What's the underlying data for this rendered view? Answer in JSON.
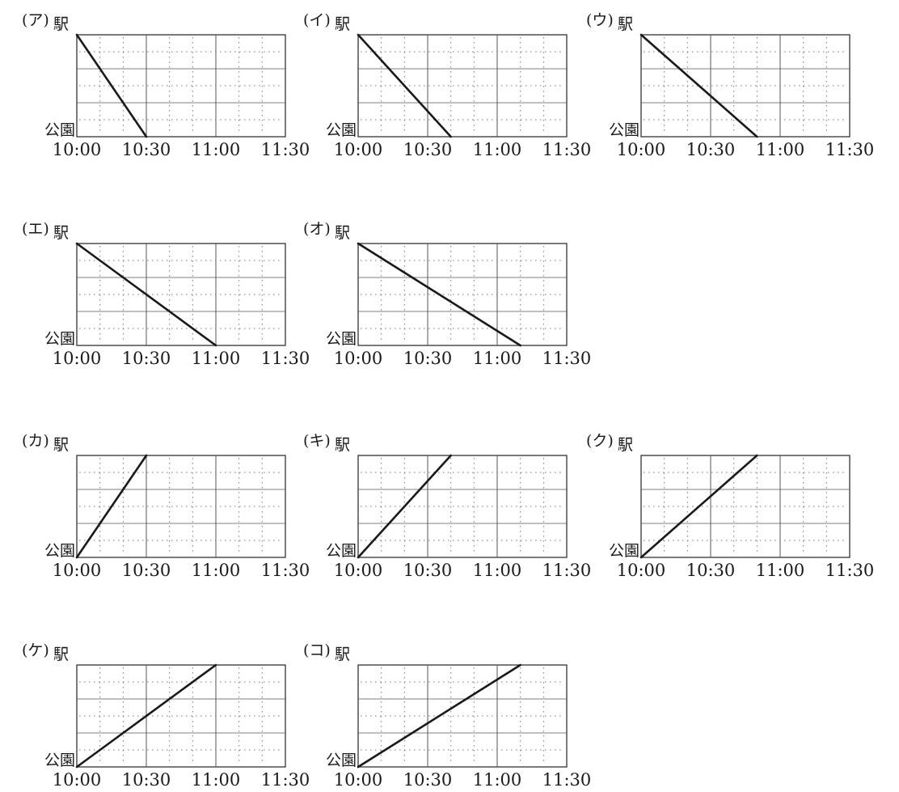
{
  "chart_data": [
    {
      "type": "line",
      "panel_label": "(ア)",
      "y_top_label": "駅",
      "y_bottom_label": "公園",
      "xticks": [
        "10:00",
        "10:30",
        "11:00",
        "11:30"
      ],
      "xlim": [
        0,
        90
      ],
      "ylim": [
        0,
        1
      ],
      "direction": "駅→公園",
      "series": [
        {
          "x": [
            0,
            30
          ],
          "y": [
            1,
            0
          ]
        }
      ]
    },
    {
      "type": "line",
      "panel_label": "(イ)",
      "y_top_label": "駅",
      "y_bottom_label": "公園",
      "xticks": [
        "10:00",
        "10:30",
        "11:00",
        "11:30"
      ],
      "xlim": [
        0,
        90
      ],
      "ylim": [
        0,
        1
      ],
      "direction": "駅→公園",
      "series": [
        {
          "x": [
            0,
            40
          ],
          "y": [
            1,
            0
          ]
        }
      ]
    },
    {
      "type": "line",
      "panel_label": "(ウ)",
      "y_top_label": "駅",
      "y_bottom_label": "公園",
      "xticks": [
        "10:00",
        "10:30",
        "11:00",
        "11:30"
      ],
      "xlim": [
        0,
        90
      ],
      "ylim": [
        0,
        1
      ],
      "direction": "駅→公園",
      "series": [
        {
          "x": [
            0,
            50
          ],
          "y": [
            1,
            0
          ]
        }
      ]
    },
    {
      "type": "line",
      "panel_label": "(エ)",
      "y_top_label": "駅",
      "y_bottom_label": "公園",
      "xticks": [
        "10:00",
        "10:30",
        "11:00",
        "11:30"
      ],
      "xlim": [
        0,
        90
      ],
      "ylim": [
        0,
        1
      ],
      "direction": "駅→公園",
      "series": [
        {
          "x": [
            0,
            60
          ],
          "y": [
            1,
            0
          ]
        }
      ]
    },
    {
      "type": "line",
      "panel_label": "(オ)",
      "y_top_label": "駅",
      "y_bottom_label": "公園",
      "xticks": [
        "10:00",
        "10:30",
        "11:00",
        "11:30"
      ],
      "xlim": [
        0,
        90
      ],
      "ylim": [
        0,
        1
      ],
      "direction": "駅→公園",
      "series": [
        {
          "x": [
            0,
            70
          ],
          "y": [
            1,
            0
          ]
        }
      ]
    },
    {
      "type": "line",
      "panel_label": "(カ)",
      "y_top_label": "駅",
      "y_bottom_label": "公園",
      "xticks": [
        "10:00",
        "10:30",
        "11:00",
        "11:30"
      ],
      "xlim": [
        0,
        90
      ],
      "ylim": [
        0,
        1
      ],
      "direction": "公園→駅",
      "series": [
        {
          "x": [
            0,
            30
          ],
          "y": [
            0,
            1
          ]
        }
      ]
    },
    {
      "type": "line",
      "panel_label": "(キ)",
      "y_top_label": "駅",
      "y_bottom_label": "公園",
      "xticks": [
        "10:00",
        "10:30",
        "11:00",
        "11:30"
      ],
      "xlim": [
        0,
        90
      ],
      "ylim": [
        0,
        1
      ],
      "direction": "公園→駅",
      "series": [
        {
          "x": [
            0,
            40
          ],
          "y": [
            0,
            1
          ]
        }
      ]
    },
    {
      "type": "line",
      "panel_label": "(ク)",
      "y_top_label": "駅",
      "y_bottom_label": "公園",
      "xticks": [
        "10:00",
        "10:30",
        "11:00",
        "11:30"
      ],
      "xlim": [
        0,
        90
      ],
      "ylim": [
        0,
        1
      ],
      "direction": "公園→駅",
      "series": [
        {
          "x": [
            0,
            50
          ],
          "y": [
            0,
            1
          ]
        }
      ]
    },
    {
      "type": "line",
      "panel_label": "(ケ)",
      "y_top_label": "駅",
      "y_bottom_label": "公園",
      "xticks": [
        "10:00",
        "10:30",
        "11:00",
        "11:30"
      ],
      "xlim": [
        0,
        90
      ],
      "ylim": [
        0,
        1
      ],
      "direction": "公園→駅",
      "series": [
        {
          "x": [
            0,
            60
          ],
          "y": [
            0,
            1
          ]
        }
      ]
    },
    {
      "type": "line",
      "panel_label": "(コ)",
      "y_top_label": "駅",
      "y_bottom_label": "公園",
      "xticks": [
        "10:00",
        "10:30",
        "11:00",
        "11:30"
      ],
      "xlim": [
        0,
        90
      ],
      "ylim": [
        0,
        1
      ],
      "direction": "公園→駅",
      "series": [
        {
          "x": [
            0,
            70
          ],
          "y": [
            0,
            1
          ]
        }
      ]
    }
  ],
  "colors": {
    "line": "#1a1a1a",
    "frame": "#333333",
    "grid": "#555555",
    "dots": "#777777",
    "background": "#ffffff"
  }
}
